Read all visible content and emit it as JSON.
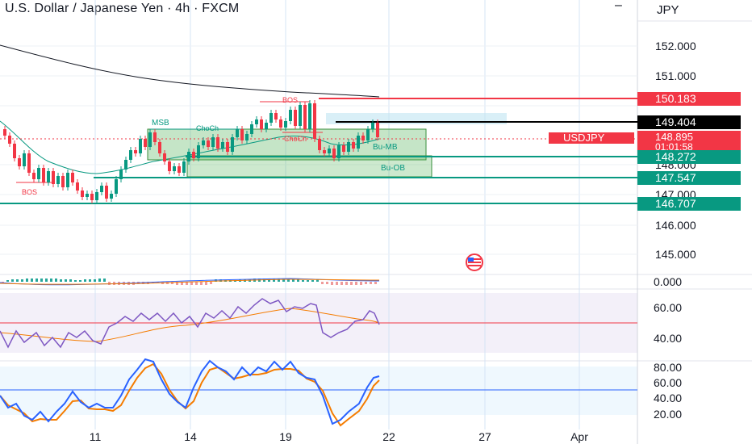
{
  "header": {
    "title": "U.S. Dollar / Japanese Yen · 4h · FXCM",
    "currency": "JPY",
    "menu_glyph": "–"
  },
  "price_axis": {
    "ticks": [
      {
        "label": "152.000",
        "value": 152
      },
      {
        "label": "151.000",
        "value": 151
      },
      {
        "label": "148.000",
        "value": 148
      },
      {
        "label": "147.000",
        "value": 147
      },
      {
        "label": "146.000",
        "value": 146
      },
      {
        "label": "145.000",
        "value": 145
      }
    ],
    "tags": [
      {
        "label": "150.183",
        "value": 150.183,
        "color": "#f23645"
      },
      {
        "label": "149.404",
        "value": 149.404,
        "color": "#000000"
      },
      {
        "label": "148.272",
        "value": 148.272,
        "color": "#089981"
      },
      {
        "label": "147.547",
        "value": 147.547,
        "color": "#089981"
      },
      {
        "label": "146.707",
        "value": 146.707,
        "color": "#089981"
      }
    ],
    "current": {
      "symbol": "USDJPY",
      "price": "148.895",
      "countdown": "01:01:58",
      "color": "#f23645"
    }
  },
  "time_axis": [
    "11",
    "14",
    "19",
    "22",
    "27",
    "Apr"
  ],
  "annotations": [
    "BOS",
    "BOS",
    "MSB",
    "ChoCh",
    "ChoCh",
    "Bu-MB",
    "Bu-OB"
  ],
  "macd_axis": [
    "0.000"
  ],
  "rsi_axis": [
    "60.00",
    "40.00"
  ],
  "stoch_axis": [
    "80.00",
    "60.00",
    "40.00",
    "20.00"
  ],
  "colors": {
    "bull": "#089981",
    "bear": "#f23645",
    "zone": "#4caf50",
    "rsi": "#7e57c2",
    "stoch_k": "#2962ff",
    "stoch_d": "#f57c00"
  },
  "chart_data": {
    "type": "candlestick",
    "symbol": "USDJPY",
    "timeframe": "4h",
    "levels": [
      150.183,
      149.404,
      148.272,
      147.547,
      146.707
    ],
    "last_price": 148.895,
    "rsi_levels": [
      60,
      40
    ],
    "stoch_levels": [
      80,
      60,
      40,
      20
    ]
  }
}
